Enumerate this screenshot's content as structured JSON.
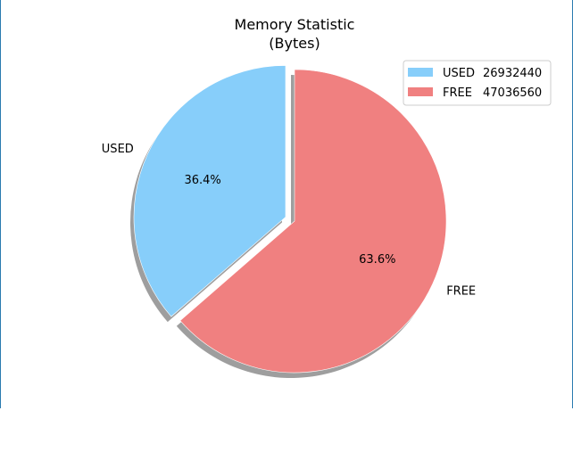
{
  "chart_data": {
    "type": "pie",
    "title": "Memory Statistic",
    "subtitle": "(Bytes)",
    "categories": [
      "USED",
      "FREE"
    ],
    "values": [
      26932440,
      47036560
    ],
    "percent_labels": [
      "36.4%",
      "63.6%"
    ],
    "colors": [
      "#87CEFA",
      "#F08080"
    ],
    "exploded": [
      "USED"
    ],
    "shadow": true,
    "start_angle_deg": 90,
    "direction": "counterclockwise",
    "legend": {
      "placement": "top-right",
      "entries": [
        {
          "label": "USED",
          "value": "26932440"
        },
        {
          "label": "FREE",
          "value": "47036560"
        }
      ]
    }
  }
}
